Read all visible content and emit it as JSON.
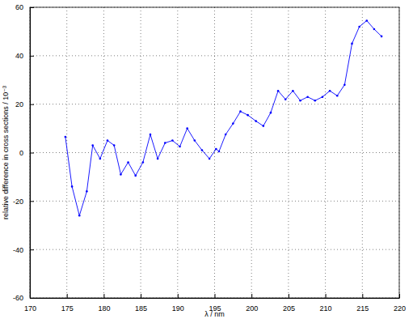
{
  "chart_data": {
    "type": "line",
    "x_label": "λ / nm",
    "y_label": "relative difference in cross sections / 10⁻³",
    "x": [
      174.8,
      175.7,
      176.7,
      177.7,
      178.5,
      179.5,
      180.5,
      181.4,
      182.3,
      183.3,
      184.3,
      185.3,
      186.3,
      187.3,
      188.3,
      189.3,
      190.3,
      191.3,
      192.3,
      193.3,
      194.3,
      195.2,
      195.6,
      196.5,
      197.5,
      198.5,
      199.5,
      200.6,
      201.6,
      202.6,
      203.6,
      204.6,
      205.6,
      206.6,
      207.6,
      208.6,
      209.6,
      210.6,
      211.6,
      212.6,
      213.6,
      214.6,
      215.6,
      216.6,
      217.6
    ],
    "values": [
      6.5,
      -14,
      -26,
      -16,
      3,
      -2.5,
      5,
      3,
      -9,
      -4,
      -9.5,
      -4,
      7.5,
      -2.5,
      4,
      5,
      2.5,
      10,
      5,
      1,
      -2.5,
      1.5,
      0.5,
      7.5,
      12,
      17,
      15.5,
      13,
      11,
      16.5,
      25.5,
      22,
      25.5,
      21.5,
      23,
      21.5,
      23,
      25.5,
      23.5,
      28,
      45,
      52,
      54.5,
      51,
      48
    ],
    "color": "#0000ff",
    "marker": "dot",
    "line_style": "solid",
    "xlim": [
      170,
      220
    ],
    "xticks": [
      170,
      175,
      180,
      185,
      190,
      195,
      200,
      205,
      210,
      215,
      220
    ],
    "ylim": [
      -60,
      60
    ],
    "yticks": [
      -60,
      -40,
      -20,
      0,
      20,
      40,
      60
    ],
    "grid": true
  }
}
